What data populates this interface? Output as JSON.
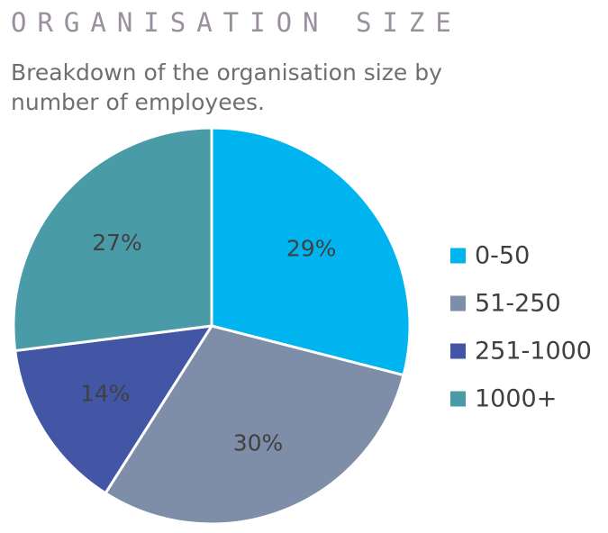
{
  "header": {
    "title": "ORGANISATION SIZE",
    "subtitle": "Breakdown of the organisation size by number of employees."
  },
  "chart_data": {
    "type": "pie",
    "title": "ORGANISATION SIZE",
    "subtitle": "Breakdown of the organisation size by number of employees.",
    "categories": [
      "0-50",
      "51-250",
      "251-1000",
      "1000+"
    ],
    "values": [
      29,
      30,
      14,
      27
    ],
    "value_labels": [
      "29%",
      "30%",
      "14%",
      "27%"
    ],
    "colors": [
      "#00b5ef",
      "#7e8ea8",
      "#4356a6",
      "#4a9ba8"
    ],
    "legend_position": "right",
    "start_angle": "12 o'clock",
    "direction": "clockwise"
  }
}
